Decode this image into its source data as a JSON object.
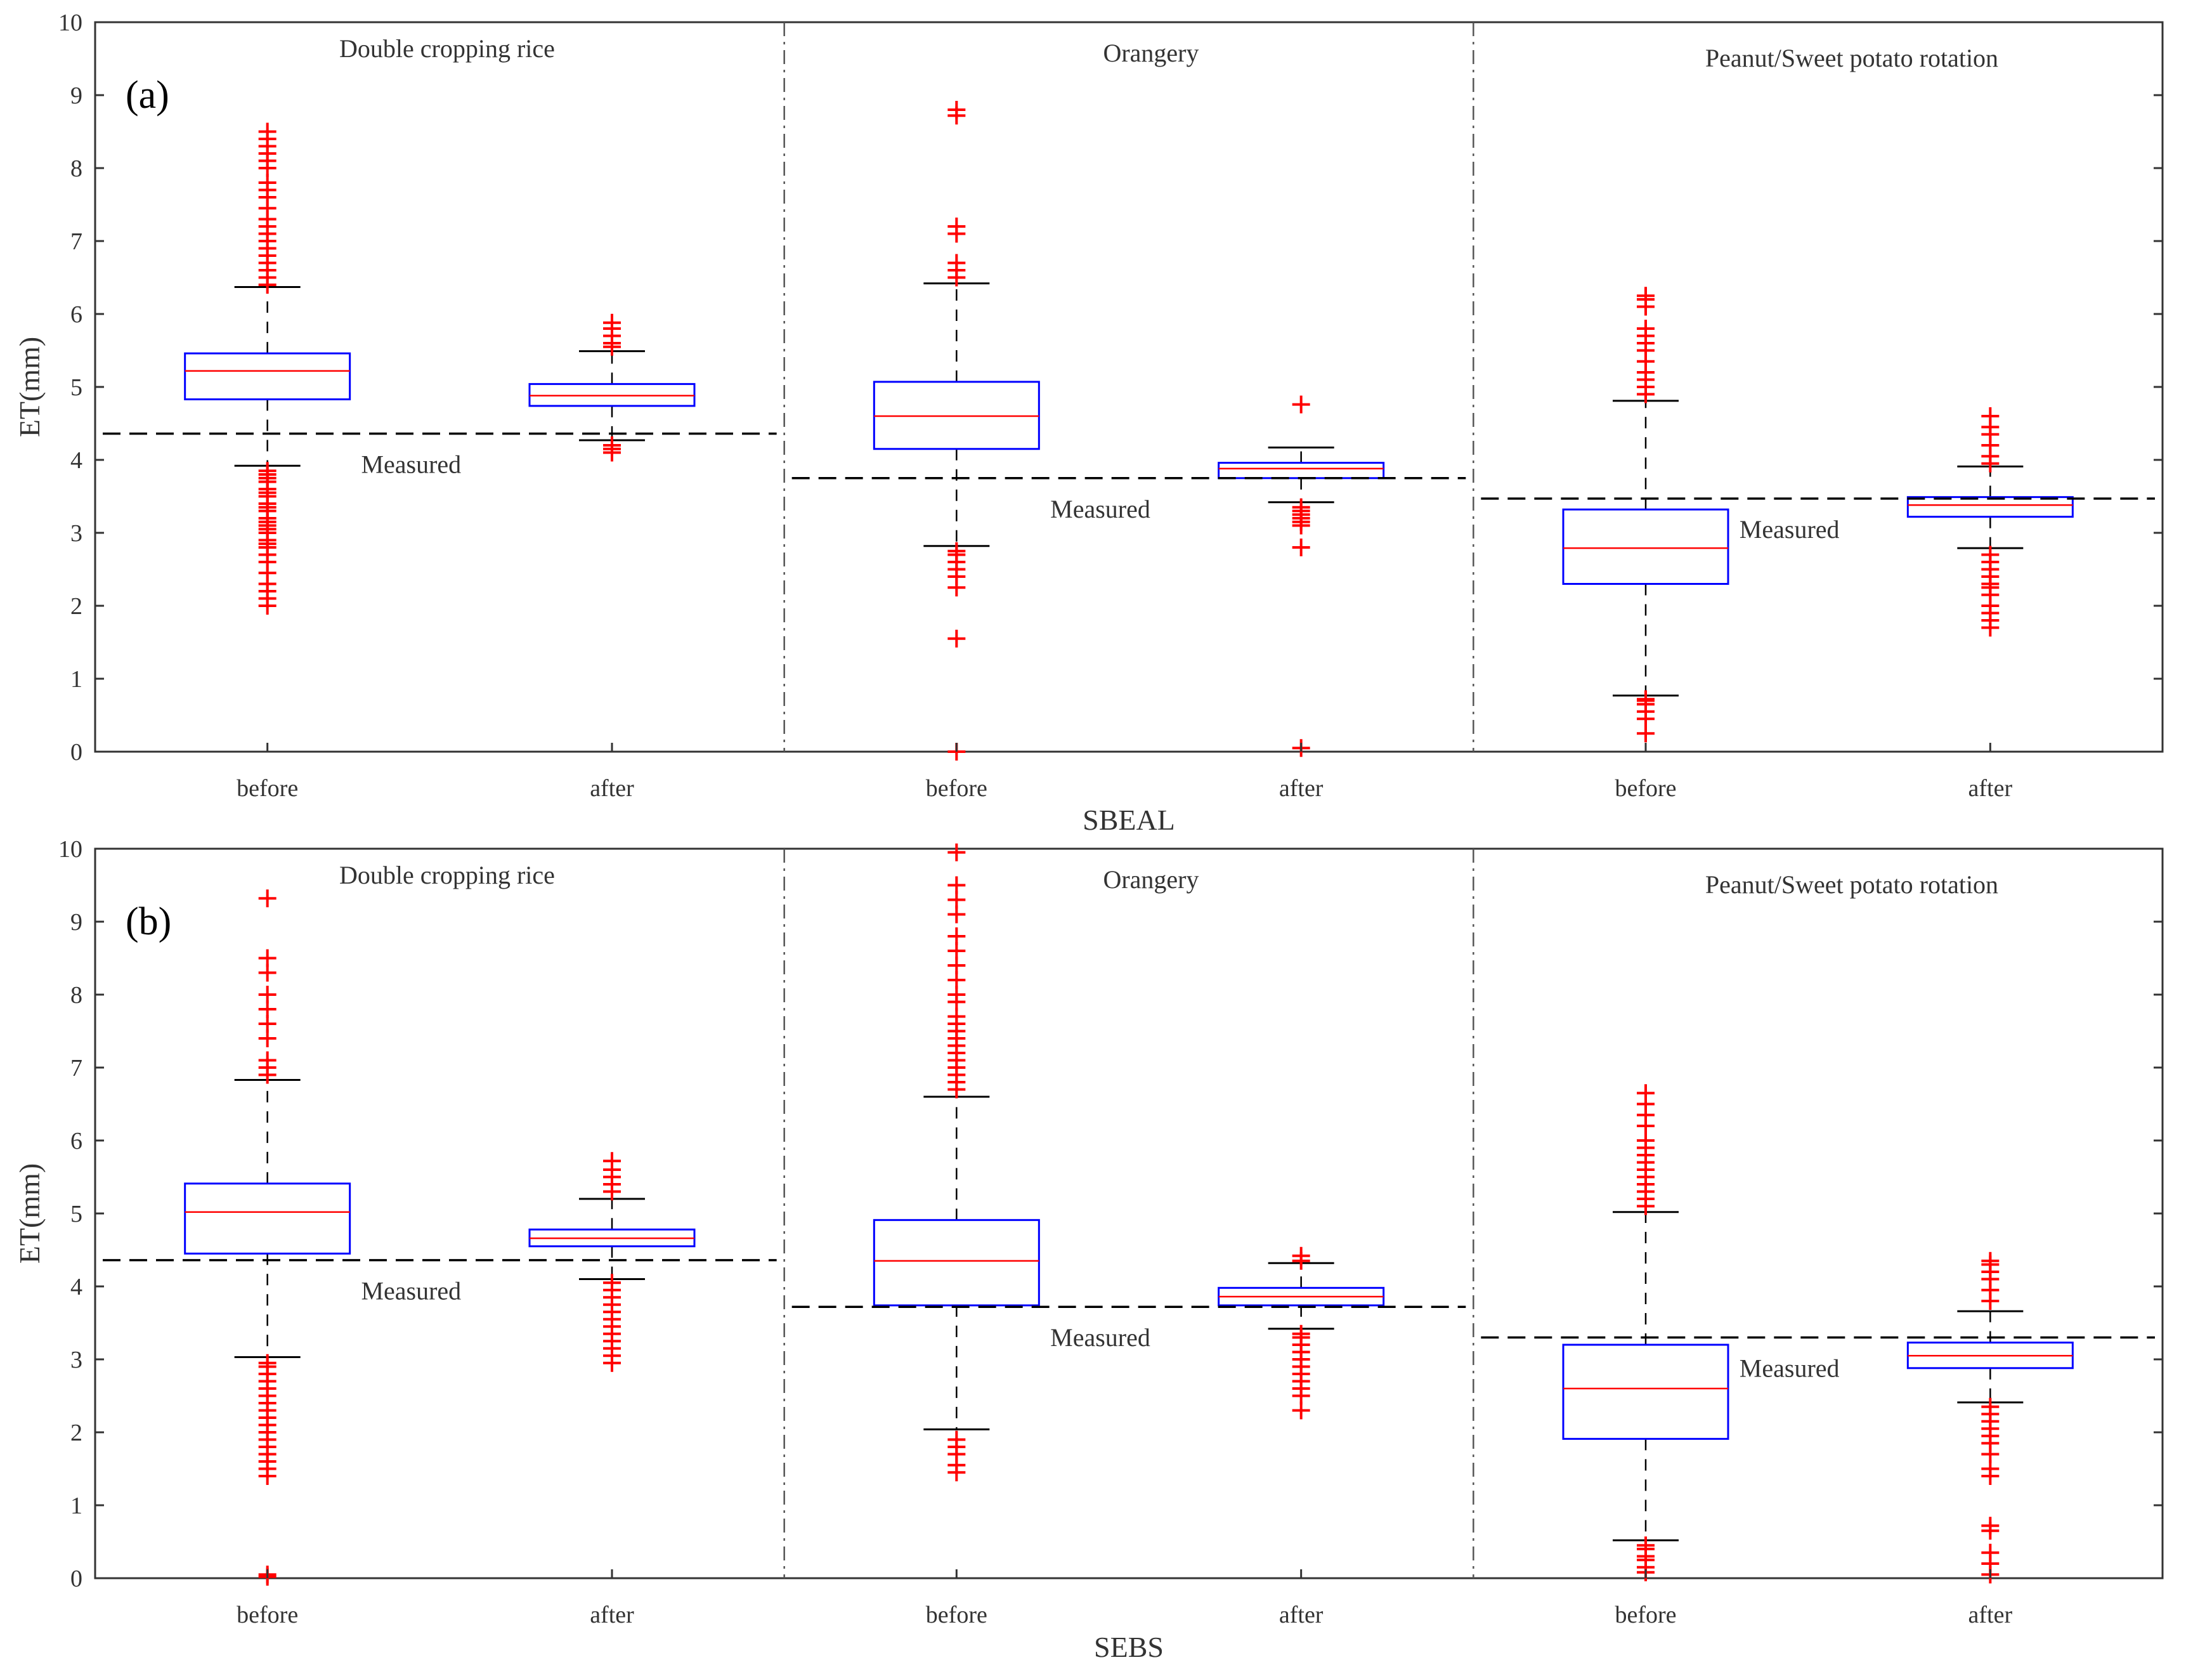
{
  "chart_data": [
    {
      "type": "boxplot",
      "panel_label": "(a)",
      "xlabel": "SBEAL",
      "ylabel": "ET(mm)",
      "ylim": [
        0,
        10
      ],
      "yticks": [
        0,
        1,
        2,
        3,
        4,
        5,
        6,
        7,
        8,
        9,
        10
      ],
      "measured_label": "Measured",
      "colors": {
        "box": "#0000ff",
        "median": "#ff0000",
        "outlier": "#ff0000",
        "whisker": "#000000",
        "measured": "#000000"
      },
      "groups": [
        {
          "title": "Double cropping rice",
          "measured": 4.36,
          "boxes": [
            {
              "label": "before",
              "whislo": 3.92,
              "q1": 4.83,
              "med": 5.22,
              "q3": 5.46,
              "whishi": 6.37,
              "fliers": [
                2.0,
                2.1,
                2.2,
                2.3,
                2.45,
                2.6,
                2.7,
                2.8,
                2.85,
                2.9,
                3.0,
                3.05,
                3.1,
                3.15,
                3.2,
                3.3,
                3.35,
                3.4,
                3.5,
                3.55,
                3.6,
                3.7,
                3.75,
                3.8,
                3.85,
                6.4,
                6.5,
                6.6,
                6.7,
                6.8,
                6.9,
                7.0,
                7.1,
                7.2,
                7.3,
                7.45,
                7.6,
                7.7,
                7.8,
                8.0,
                8.1,
                8.2,
                8.3,
                8.4,
                8.5
              ]
            },
            {
              "label": "after",
              "whislo": 4.27,
              "q1": 4.74,
              "med": 4.88,
              "q3": 5.04,
              "whishi": 5.49,
              "fliers": [
                4.1,
                4.15,
                4.2,
                5.55,
                5.6,
                5.7,
                5.8,
                5.88
              ]
            }
          ]
        },
        {
          "title": "Orangery",
          "measured": 3.75,
          "boxes": [
            {
              "label": "before",
              "whislo": 2.82,
              "q1": 4.15,
              "med": 4.6,
              "q3": 5.07,
              "whishi": 6.42,
              "fliers": [
                0.0,
                1.55,
                2.25,
                2.4,
                2.5,
                2.6,
                2.7,
                2.75,
                6.5,
                6.6,
                6.7,
                7.1,
                7.2,
                8.72,
                8.8
              ]
            },
            {
              "label": "after",
              "whislo": 3.42,
              "q1": 3.75,
              "med": 3.88,
              "q3": 3.96,
              "whishi": 4.17,
              "fliers": [
                0.05,
                2.8,
                3.1,
                3.15,
                3.2,
                3.25,
                3.3,
                3.35,
                4.76
              ]
            }
          ]
        },
        {
          "title": "Peanut/Sweet potato rotation",
          "measured": 3.47,
          "boxes": [
            {
              "label": "before",
              "whislo": 0.77,
              "q1": 2.3,
              "med": 2.79,
              "q3": 3.32,
              "whishi": 4.81,
              "fliers": [
                0.25,
                0.45,
                0.55,
                0.65,
                0.7,
                0.72,
                4.9,
                5.0,
                5.1,
                5.2,
                5.35,
                5.5,
                5.6,
                5.7,
                5.8,
                6.1,
                6.2,
                6.25
              ]
            },
            {
              "label": "after",
              "whislo": 2.79,
              "q1": 3.22,
              "med": 3.38,
              "q3": 3.49,
              "whishi": 3.91,
              "fliers": [
                1.7,
                1.8,
                1.9,
                2.0,
                2.15,
                2.25,
                2.3,
                2.4,
                2.5,
                2.6,
                2.7,
                3.95,
                4.05,
                4.2,
                4.35,
                4.45,
                4.6
              ]
            }
          ]
        }
      ]
    },
    {
      "type": "boxplot",
      "panel_label": "(b)",
      "xlabel": "SEBS",
      "ylabel": "ET(mm)",
      "ylim": [
        0,
        10
      ],
      "yticks": [
        0,
        1,
        2,
        3,
        4,
        5,
        6,
        7,
        8,
        9,
        10
      ],
      "measured_label": "Measured",
      "colors": {
        "box": "#0000ff",
        "median": "#ff0000",
        "outlier": "#ff0000",
        "whisker": "#000000",
        "measured": "#000000"
      },
      "groups": [
        {
          "title": "Double cropping rice",
          "measured": 4.36,
          "boxes": [
            {
              "label": "before",
              "whislo": 3.03,
              "q1": 4.45,
              "med": 5.02,
              "q3": 5.41,
              "whishi": 6.83,
              "fliers": [
                0.02,
                0.05,
                1.4,
                1.5,
                1.6,
                1.7,
                1.8,
                1.9,
                2.0,
                2.1,
                2.2,
                2.3,
                2.4,
                2.5,
                2.6,
                2.7,
                2.8,
                2.9,
                2.95,
                6.9,
                7.0,
                7.1,
                7.4,
                7.6,
                7.8,
                8.0,
                8.3,
                8.5,
                9.32
              ]
            },
            {
              "label": "after",
              "whislo": 4.1,
              "q1": 4.55,
              "med": 4.66,
              "q3": 4.78,
              "whishi": 5.2,
              "fliers": [
                2.95,
                3.05,
                3.15,
                3.25,
                3.35,
                3.45,
                3.55,
                3.65,
                3.75,
                3.85,
                3.95,
                4.05,
                5.3,
                5.4,
                5.5,
                5.6,
                5.72
              ]
            }
          ]
        },
        {
          "title": "Orangery",
          "measured": 3.72,
          "boxes": [
            {
              "label": "before",
              "whislo": 2.04,
              "q1": 3.74,
              "med": 4.35,
              "q3": 4.91,
              "whishi": 6.6,
              "fliers": [
                1.45,
                1.55,
                1.7,
                1.8,
                1.9,
                6.7,
                6.8,
                6.9,
                7.0,
                7.1,
                7.2,
                7.3,
                7.4,
                7.5,
                7.6,
                7.7,
                7.9,
                8.0,
                8.2,
                8.4,
                8.6,
                8.8,
                9.1,
                9.3,
                9.5,
                9.95
              ]
            },
            {
              "label": "after",
              "whislo": 3.42,
              "q1": 3.74,
              "med": 3.86,
              "q3": 3.98,
              "whishi": 4.32,
              "fliers": [
                2.3,
                2.5,
                2.6,
                2.7,
                2.8,
                2.9,
                3.0,
                3.1,
                3.2,
                3.3,
                3.35,
                4.35,
                4.42
              ]
            }
          ]
        },
        {
          "title": "Peanut/Sweet potato rotation",
          "measured": 3.3,
          "boxes": [
            {
              "label": "before",
              "whislo": 0.52,
              "q1": 1.91,
              "med": 2.6,
              "q3": 3.2,
              "whishi": 5.02,
              "fliers": [
                0.08,
                0.15,
                0.25,
                0.3,
                0.4,
                0.45,
                5.1,
                5.2,
                5.3,
                5.4,
                5.5,
                5.6,
                5.7,
                5.8,
                5.9,
                6.0,
                6.2,
                6.35,
                6.5,
                6.65
              ]
            },
            {
              "label": "after",
              "whislo": 2.41,
              "q1": 2.88,
              "med": 3.05,
              "q3": 3.23,
              "whishi": 3.66,
              "fliers": [
                0.05,
                0.2,
                0.35,
                0.65,
                0.72,
                1.4,
                1.5,
                1.7,
                1.85,
                1.95,
                2.05,
                2.15,
                2.25,
                2.35,
                3.8,
                3.95,
                4.1,
                4.2,
                4.3,
                4.35
              ]
            }
          ]
        }
      ]
    }
  ]
}
